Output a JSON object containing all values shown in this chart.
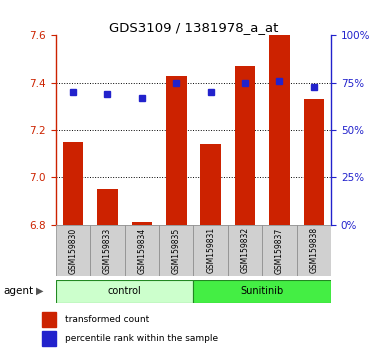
{
  "title": "GDS3109 / 1381978_a_at",
  "samples": [
    "GSM159830",
    "GSM159833",
    "GSM159834",
    "GSM159835",
    "GSM159831",
    "GSM159832",
    "GSM159837",
    "GSM159838"
  ],
  "bar_values": [
    7.15,
    6.95,
    6.81,
    7.43,
    7.14,
    7.47,
    7.6,
    7.33
  ],
  "percentile_values": [
    70,
    69,
    67,
    75,
    70,
    75,
    76,
    73
  ],
  "ylim_left": [
    6.8,
    7.6
  ],
  "ylim_right": [
    0,
    100
  ],
  "yticks_left": [
    6.8,
    7.0,
    7.2,
    7.4,
    7.6
  ],
  "yticks_right": [
    0,
    25,
    50,
    75,
    100
  ],
  "bar_color": "#cc2200",
  "percentile_color": "#2222cc",
  "bar_width": 0.6,
  "control_color": "#ccffcc",
  "sunitinib_color": "#44ee44",
  "group_edge_color": "#228822",
  "group_labels": [
    "control",
    "Sunitinib"
  ],
  "group_ranges": [
    [
      0,
      3
    ],
    [
      4,
      7
    ]
  ],
  "agent_label": "agent",
  "legend_bar_label": "transformed count",
  "legend_pct_label": "percentile rank within the sample",
  "title_color": "#000000",
  "left_tick_color": "#cc2200",
  "right_tick_color": "#2222cc",
  "grid_color": "#000000",
  "background_color": "#ffffff"
}
